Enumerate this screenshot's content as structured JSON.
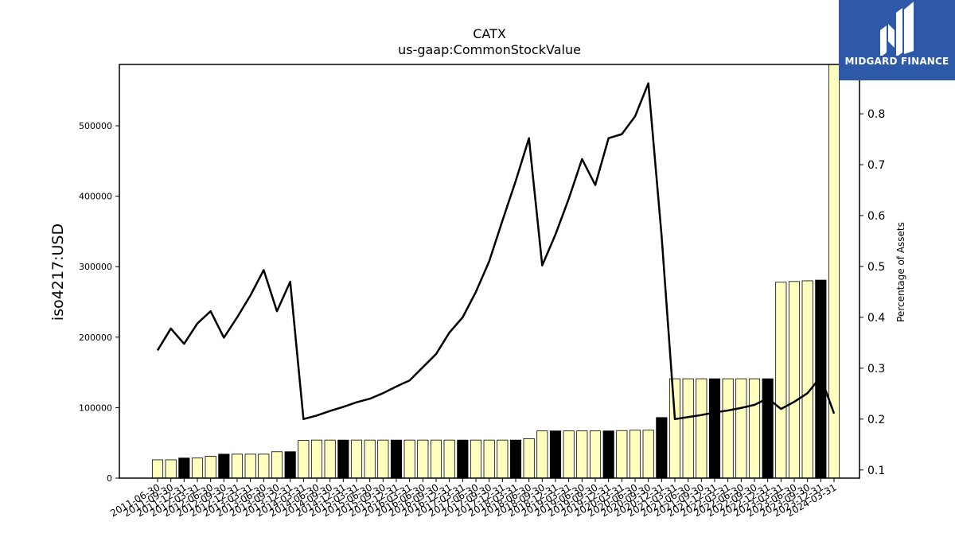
{
  "chart_data": {
    "type": "bar",
    "title": "CATX",
    "subtitle": "us-gaap:CommonStockValue",
    "ylabel": "iso4217:USD",
    "y2label": "Percentage of Assets",
    "ylim": [
      0,
      587000
    ],
    "y2lim": [
      0.084,
      0.897
    ],
    "yticks": [
      0,
      100000,
      200000,
      300000,
      400000,
      500000
    ],
    "y2ticks": [
      0.1,
      0.2,
      0.3,
      0.4,
      0.5,
      0.6,
      0.7,
      0.8
    ],
    "categories": [
      "2011-06-30",
      "2011-09-30",
      "2011-12-31",
      "2012-03-31",
      "2012-06-30",
      "2012-09-30",
      "2012-12-31",
      "2013-03-31",
      "2013-06-30",
      "2013-09-30",
      "2013-12-31",
      "2014-03-31",
      "2014-06-30",
      "2014-09-30",
      "2014-12-31",
      "2015-03-31",
      "2015-06-30",
      "2015-09-30",
      "2015-12-31",
      "2016-03-31",
      "2016-06-30",
      "2016-09-30",
      "2016-12-31",
      "2017-03-31",
      "2017-06-30",
      "2017-09-30",
      "2017-12-31",
      "2018-03-31",
      "2018-06-30",
      "2018-09-30",
      "2018-12-31",
      "2019-03-31",
      "2019-06-30",
      "2019-09-30",
      "2019-12-31",
      "2020-03-31",
      "2020-06-30",
      "2020-09-30",
      "2020-12-31",
      "2021-03-31",
      "2021-06-30",
      "2021-09-30",
      "2021-12-31",
      "2022-03-31",
      "2022-06-30",
      "2022-09-30",
      "2022-12-31",
      "2023-03-31",
      "2023-06-30",
      "2023-09-30",
      "2023-12-31",
      "2024-03-31"
    ],
    "series": [
      {
        "type": "bar",
        "values": [
          26000,
          26000,
          28500,
          28500,
          31000,
          34000,
          34000,
          34000,
          34000,
          37500,
          37500,
          53500,
          54000,
          54000,
          54000,
          54000,
          54000,
          54000,
          54000,
          54000,
          54000,
          54000,
          54000,
          54000,
          54000,
          54000,
          54000,
          54000,
          56000,
          67000,
          67000,
          67000,
          67000,
          67000,
          67000,
          67500,
          68000,
          68000,
          86000,
          141000,
          141000,
          141000,
          141000,
          141000,
          141000,
          141000,
          141000,
          278000,
          279000,
          280000,
          281000,
          590000
        ],
        "highlight": [
          false,
          false,
          true,
          false,
          false,
          true,
          false,
          false,
          false,
          false,
          true,
          false,
          false,
          false,
          true,
          false,
          false,
          false,
          true,
          false,
          false,
          false,
          false,
          true,
          false,
          false,
          false,
          true,
          false,
          false,
          true,
          false,
          false,
          false,
          true,
          false,
          false,
          false,
          true,
          false,
          false,
          false,
          true,
          false,
          false,
          false,
          true,
          false,
          false,
          false,
          true,
          false
        ]
      },
      {
        "type": "line",
        "axis": "right",
        "values": [
          0.335,
          0.378,
          0.348,
          0.388,
          0.412,
          0.36,
          0.4,
          0.443,
          0.493,
          0.412,
          0.47,
          0.2,
          0.207,
          0.216,
          0.224,
          0.233,
          0.24,
          0.251,
          0.264,
          0.276,
          0.302,
          0.328,
          0.37,
          0.4,
          0.45,
          0.51,
          0.59,
          0.668,
          0.752,
          0.502,
          0.563,
          0.633,
          0.711,
          0.66,
          0.752,
          0.76,
          0.795,
          0.86,
          0.56,
          0.2,
          0.204,
          0.208,
          0.213,
          0.217,
          0.222,
          0.228,
          0.241,
          0.22,
          0.234,
          0.251,
          0.283,
          0.211
        ]
      }
    ],
    "colors": {
      "bar": "#ffffc0",
      "bar_highlight": "#000000",
      "bar_edge": "#000000",
      "line": "#000000",
      "logo_bg": "#2d59a8"
    }
  },
  "logo": {
    "text": "MIDGARD FINANCE"
  }
}
